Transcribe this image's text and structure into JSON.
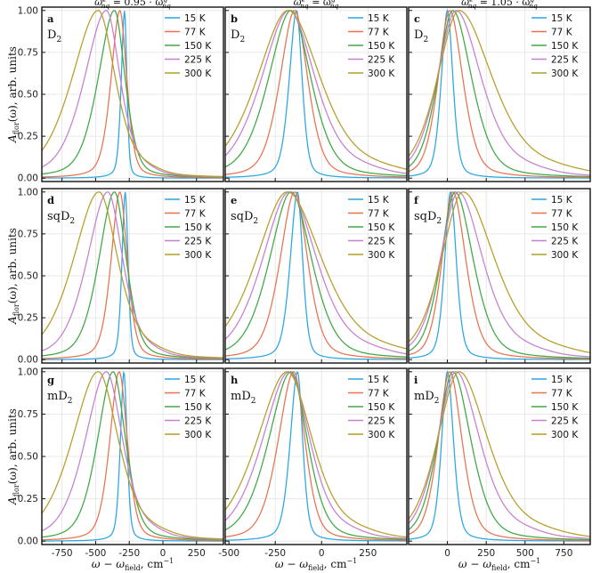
{
  "figure": {
    "ylabel": "A",
    "ylabel_sub": "flor",
    "ylabel_rest": "(ω),  arb. units",
    "xlabel": "ω − ω",
    "xlabel_sub": "field",
    "xlabel_rest": ",  cm",
    "xlabel_sup": "−1"
  },
  "columns": [
    {
      "title": "ω^e_nq = 0.95 · ω^g_nq",
      "t_main": "ω",
      "t_sup": "e",
      "t_sub": "nq",
      "t_mid": " = 0.95 · ω",
      "t_sup2": "g",
      "t_sub2": "nq",
      "xticks": [
        -750,
        -500,
        -250,
        0,
        250
      ],
      "xlim": [
        -900,
        450
      ]
    },
    {
      "title": "ω^e_nq = ω^g_nq",
      "t_main": "ω",
      "t_sup": "e",
      "t_sub": "nq",
      "t_mid": " = ω",
      "t_sup2": "g",
      "t_sub2": "nq",
      "xticks": [
        -500,
        -250,
        0,
        250
      ],
      "xlim": [
        -520,
        460
      ]
    },
    {
      "title": "ω^e_nq = 1.05 · ω^g_nq",
      "t_main": "ω",
      "t_sup": "e",
      "t_sub": "nq",
      "t_mid": " = 1.05 · ω",
      "t_sup2": "g",
      "t_sub2": "nq",
      "xticks": [
        0,
        250,
        500,
        750
      ],
      "xlim": [
        -250,
        920
      ]
    }
  ],
  "legend": [
    "15 K",
    "77 K",
    "150 K",
    "225 K",
    "300 K"
  ],
  "colors": [
    "#2aa6e0",
    "#e8724f",
    "#3ea845",
    "#c77fd1",
    "#b59e2a"
  ],
  "chart_data": [
    {
      "type": "line",
      "panel": "a",
      "label": "D2",
      "label_base": "D",
      "label_sub": "2",
      "ylim": [
        -0.02,
        1.02
      ],
      "yticks": [
        0.0,
        0.25,
        0.5,
        0.75,
        1.0
      ],
      "series": [
        {
          "name": "15 K",
          "peak": -285,
          "wl": 26,
          "wr": 18,
          "tail": 0.0
        },
        {
          "name": "77 K",
          "peak": -320,
          "wl": 70,
          "wr": 55,
          "tail": 0.0
        },
        {
          "name": "150 K",
          "peak": -360,
          "wl": 130,
          "wr": 85,
          "tail": 0.0
        },
        {
          "name": "225 K",
          "peak": -420,
          "wl": 175,
          "wr": 110,
          "tail": 0.0
        },
        {
          "name": "300 K",
          "peak": -480,
          "wl": 210,
          "wr": 135,
          "tail": 0.0
        }
      ]
    },
    {
      "type": "line",
      "panel": "b",
      "label": "D2",
      "label_base": "D",
      "label_sub": "2",
      "ylim": [
        -0.02,
        1.02
      ],
      "yticks": [
        0.0,
        0.25,
        0.5,
        0.75,
        1.0
      ],
      "series": [
        {
          "name": "15 K",
          "peak": -135,
          "wl": 42,
          "wr": 32,
          "tail": 0.0
        },
        {
          "name": "77 K",
          "peak": -145,
          "wl": 85,
          "wr": 75,
          "tail": 0.0
        },
        {
          "name": "150 K",
          "peak": -165,
          "wl": 130,
          "wr": 115,
          "tail": 0.0
        },
        {
          "name": "225 K",
          "peak": -175,
          "wl": 160,
          "wr": 150,
          "tail": 0.0
        },
        {
          "name": "300 K",
          "peak": -180,
          "wl": 180,
          "wr": 185,
          "tail": 0.0
        }
      ]
    },
    {
      "type": "line",
      "panel": "c",
      "label": "D2",
      "label_base": "D",
      "label_sub": "2",
      "ylim": [
        -0.02,
        1.02
      ],
      "yticks": [
        0.0,
        0.25,
        0.5,
        0.75,
        1.0
      ],
      "series": [
        {
          "name": "15 K",
          "peak": 0,
          "wl": 42,
          "wr": 38,
          "tail": 0.0
        },
        {
          "name": "77 K",
          "peak": 15,
          "wl": 80,
          "wr": 90,
          "tail": 0.0
        },
        {
          "name": "150 K",
          "peak": 35,
          "wl": 105,
          "wr": 130,
          "tail": 0.0
        },
        {
          "name": "225 K",
          "peak": 55,
          "wl": 130,
          "wr": 175,
          "tail": 0.0
        },
        {
          "name": "300 K",
          "peak": 75,
          "wl": 150,
          "wr": 230,
          "tail": 0.0
        }
      ]
    },
    {
      "type": "line",
      "panel": "d",
      "label": "sqD2",
      "label_base": "sqD",
      "label_sub": "2",
      "ylim": [
        -0.02,
        1.02
      ],
      "yticks": [
        0.0,
        0.25,
        0.5,
        0.75,
        1.0
      ],
      "series": [
        {
          "name": "15 K",
          "peak": -280,
          "wl": 26,
          "wr": 22,
          "tail": 0.0
        },
        {
          "name": "77 K",
          "peak": -320,
          "wl": 70,
          "wr": 60,
          "tail": 0.0
        },
        {
          "name": "150 K",
          "peak": -360,
          "wl": 125,
          "wr": 95,
          "tail": 0.0
        },
        {
          "name": "225 K",
          "peak": -410,
          "wl": 165,
          "wr": 120,
          "tail": 0.0
        },
        {
          "name": "300 K",
          "peak": -475,
          "wl": 205,
          "wr": 150,
          "tail": 0.0
        }
      ]
    },
    {
      "type": "line",
      "panel": "e",
      "label": "sqD2",
      "label_base": "sqD",
      "label_sub": "2",
      "ylim": [
        -0.02,
        1.02
      ],
      "yticks": [
        0.0,
        0.25,
        0.5,
        0.75,
        1.0
      ],
      "series": [
        {
          "name": "15 K",
          "peak": -130,
          "wl": 42,
          "wr": 30,
          "tail": 0.0
        },
        {
          "name": "77 K",
          "peak": -145,
          "wl": 85,
          "wr": 75,
          "tail": 0.0
        },
        {
          "name": "150 K",
          "peak": -165,
          "wl": 125,
          "wr": 120,
          "tail": 0.0
        },
        {
          "name": "225 K",
          "peak": -175,
          "wl": 155,
          "wr": 160,
          "tail": 0.0
        },
        {
          "name": "300 K",
          "peak": -185,
          "wl": 180,
          "wr": 200,
          "tail": 0.0
        }
      ]
    },
    {
      "type": "line",
      "panel": "f",
      "label": "sqD2",
      "label_base": "sqD",
      "label_sub": "2",
      "ylim": [
        -0.02,
        1.02
      ],
      "yticks": [
        0.0,
        0.25,
        0.5,
        0.75,
        1.0
      ],
      "series": [
        {
          "name": "15 K",
          "peak": 20,
          "wl": 40,
          "wr": 40,
          "tail": 0.0
        },
        {
          "name": "77 K",
          "peak": 35,
          "wl": 75,
          "wr": 90,
          "tail": 0.0
        },
        {
          "name": "150 K",
          "peak": 50,
          "wl": 100,
          "wr": 125,
          "tail": 0.0
        },
        {
          "name": "225 K",
          "peak": 70,
          "wl": 125,
          "wr": 170,
          "tail": 0.0
        },
        {
          "name": "300 K",
          "peak": 100,
          "wl": 150,
          "wr": 220,
          "tail": 0.0
        }
      ]
    },
    {
      "type": "line",
      "panel": "g",
      "label": "mD2",
      "label_base": "mD",
      "label_sub": "2",
      "ylim": [
        -0.02,
        1.02
      ],
      "yticks": [
        0.0,
        0.25,
        0.5,
        0.75,
        1.0
      ],
      "series": [
        {
          "name": "15 K",
          "peak": -290,
          "wl": 28,
          "wr": 25,
          "tail": 0.0
        },
        {
          "name": "77 K",
          "peak": -325,
          "wl": 75,
          "wr": 65,
          "tail": 0.0
        },
        {
          "name": "150 K",
          "peak": -370,
          "wl": 125,
          "wr": 100,
          "tail": 0.0
        },
        {
          "name": "225 K",
          "peak": -420,
          "wl": 170,
          "wr": 130,
          "tail": 0.0
        },
        {
          "name": "300 K",
          "peak": -480,
          "wl": 210,
          "wr": 160,
          "tail": 0.0
        }
      ]
    },
    {
      "type": "line",
      "panel": "h",
      "label": "mD2",
      "label_base": "mD",
      "label_sub": "2",
      "ylim": [
        -0.02,
        1.02
      ],
      "yticks": [
        0.0,
        0.25,
        0.5,
        0.75,
        1.0
      ],
      "series": [
        {
          "name": "15 K",
          "peak": -130,
          "wl": 42,
          "wr": 30,
          "tail": 0.0
        },
        {
          "name": "77 K",
          "peak": -150,
          "wl": 90,
          "wr": 65,
          "tail": 0.0
        },
        {
          "name": "150 K",
          "peak": -165,
          "wl": 130,
          "wr": 95,
          "tail": 0.0
        },
        {
          "name": "225 K",
          "peak": -175,
          "wl": 155,
          "wr": 120,
          "tail": 0.0
        },
        {
          "name": "300 K",
          "peak": -185,
          "wl": 175,
          "wr": 145,
          "tail": 0.0
        }
      ]
    },
    {
      "type": "line",
      "panel": "i",
      "label": "mD2",
      "label_base": "mD",
      "label_sub": "2",
      "ylim": [
        -0.02,
        1.02
      ],
      "yticks": [
        0.0,
        0.25,
        0.5,
        0.75,
        1.0
      ],
      "series": [
        {
          "name": "15 K",
          "peak": 0,
          "wl": 40,
          "wr": 42,
          "tail": 0.0
        },
        {
          "name": "77 K",
          "peak": 15,
          "wl": 80,
          "wr": 85,
          "tail": 0.0
        },
        {
          "name": "150 K",
          "peak": 35,
          "wl": 105,
          "wr": 125,
          "tail": 0.0
        },
        {
          "name": "225 K",
          "peak": 55,
          "wl": 130,
          "wr": 165,
          "tail": 0.0
        },
        {
          "name": "300 K",
          "peak": 75,
          "wl": 150,
          "wr": 200,
          "tail": 0.0
        }
      ]
    }
  ]
}
